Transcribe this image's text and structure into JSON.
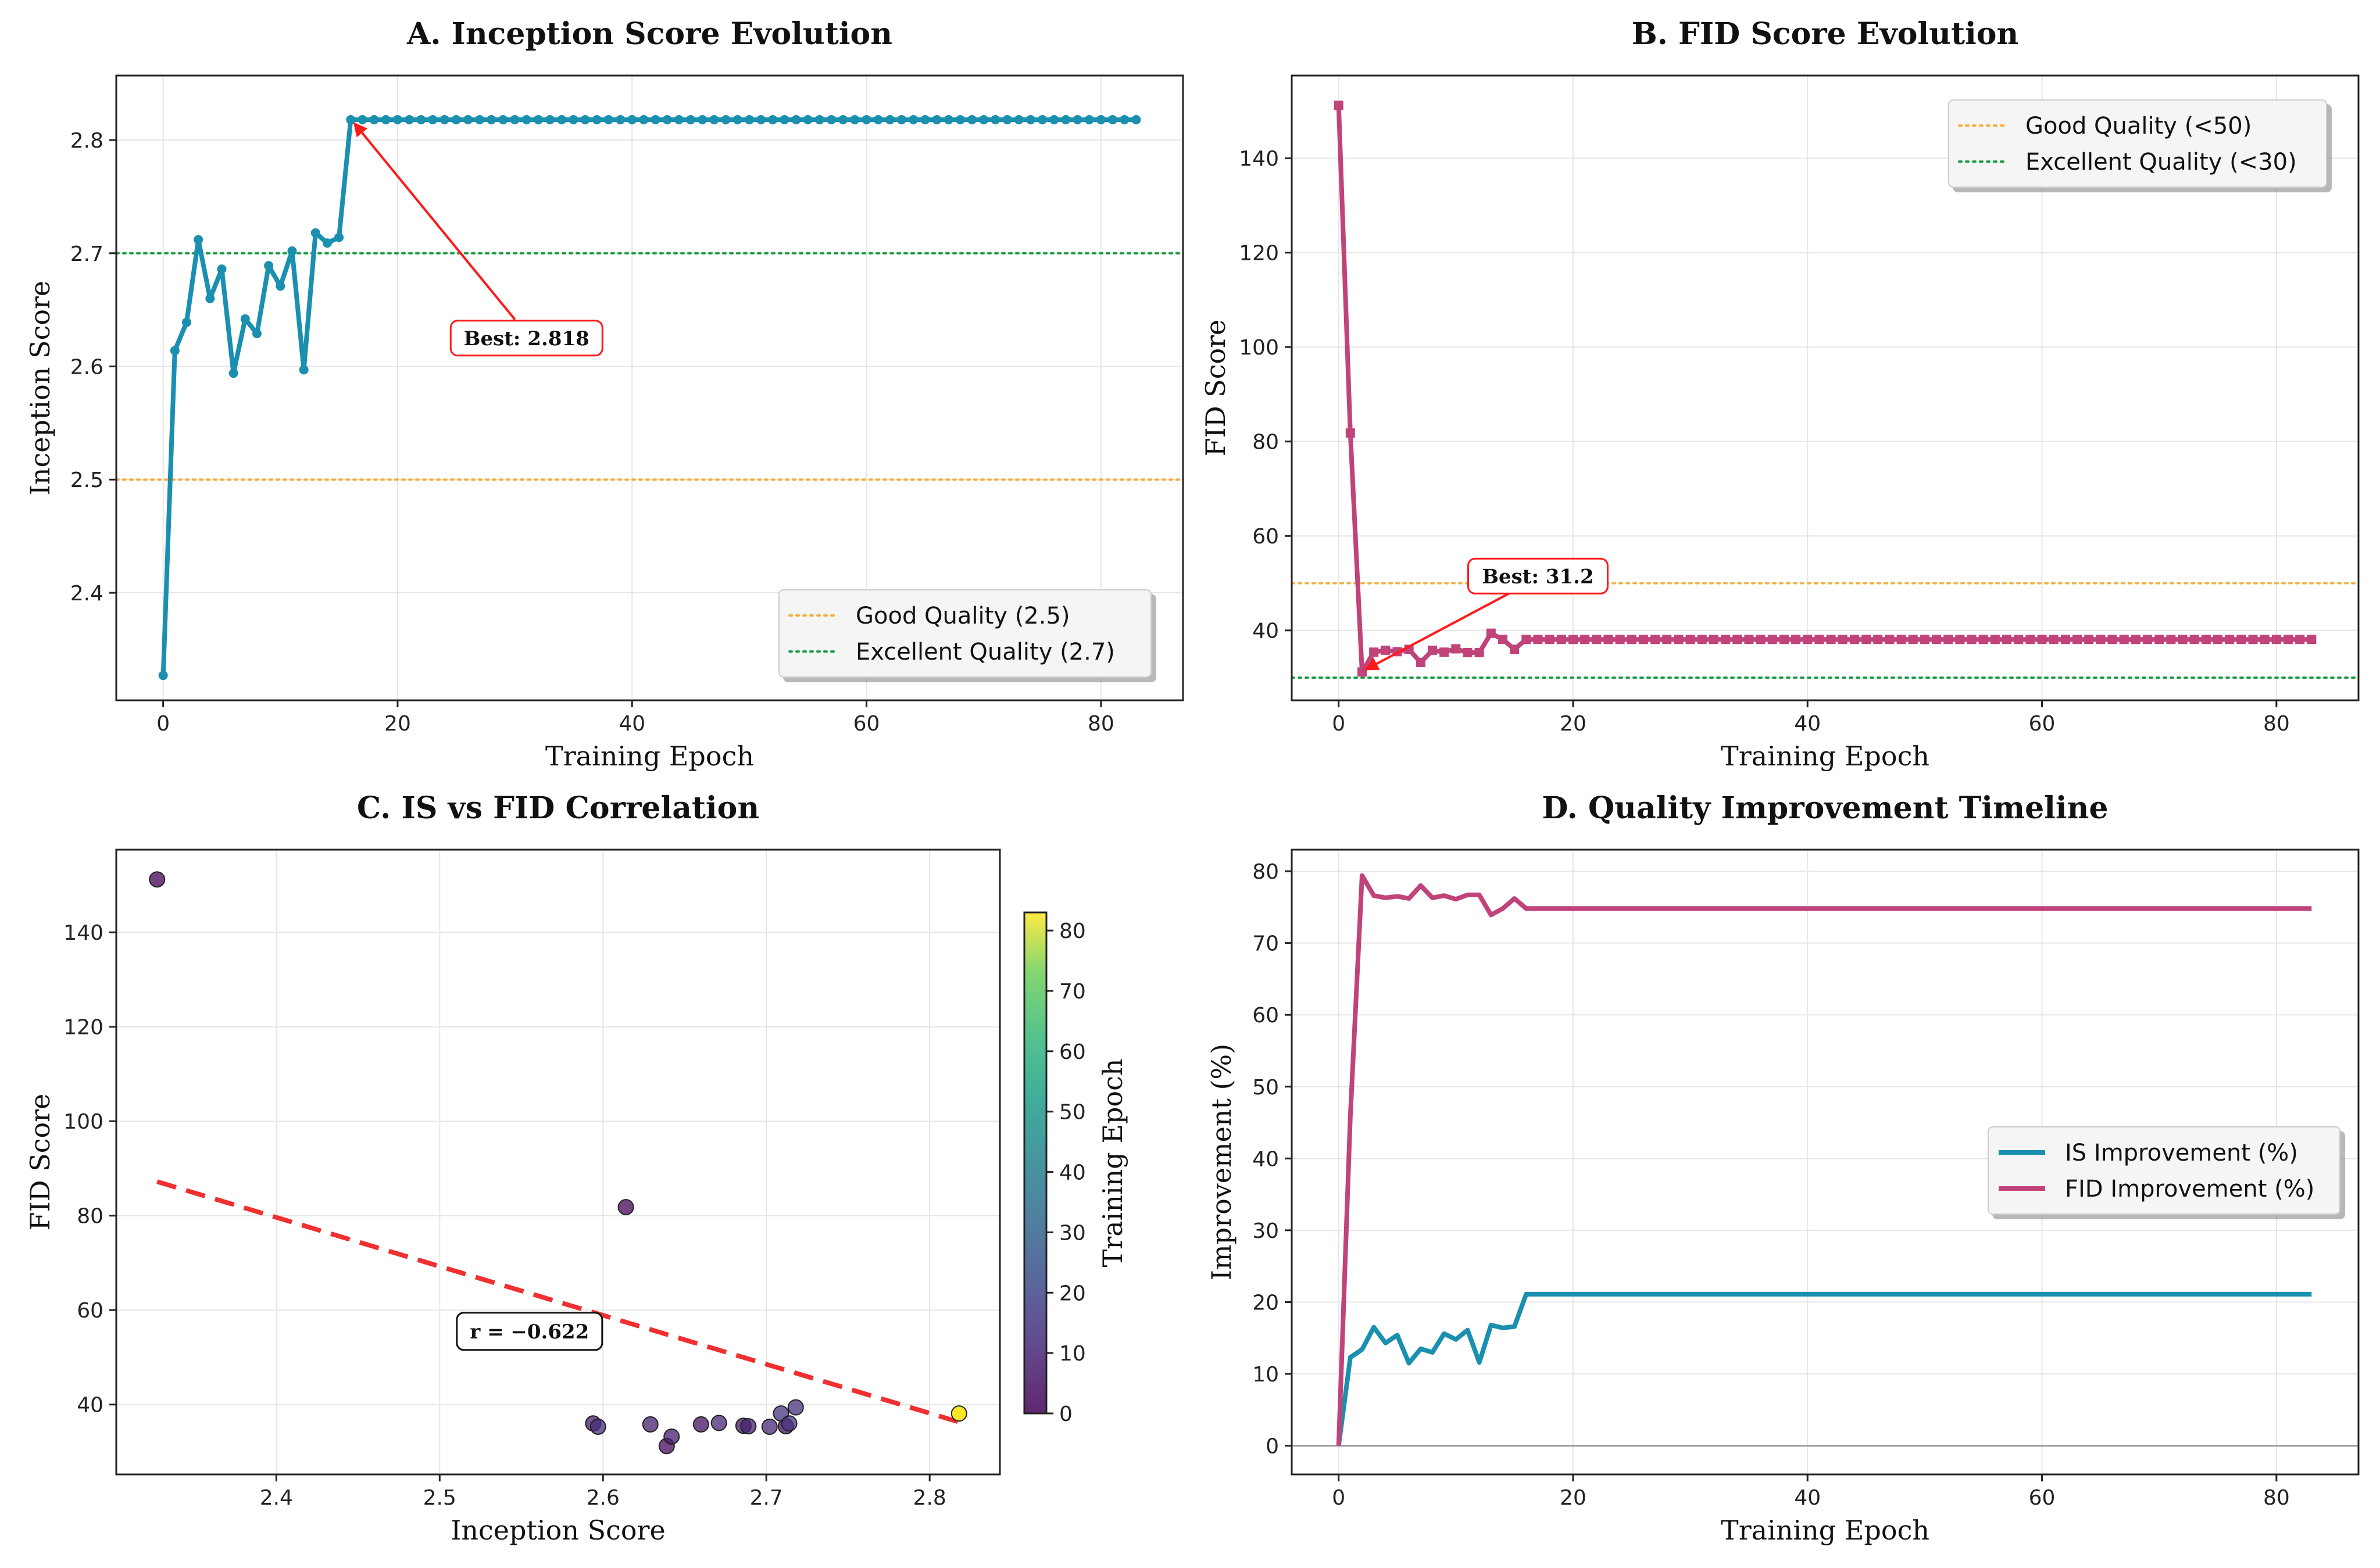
{
  "chart_data": [
    {
      "id": "A",
      "type": "line",
      "title": "A. Inception Score Evolution",
      "xlabel": "Training Epoch",
      "ylabel": "Inception Score",
      "xlim": [
        -4,
        87
      ],
      "ylim": [
        2.305,
        2.857
      ],
      "xticks": [
        0,
        20,
        40,
        60,
        80
      ],
      "yticks": [
        2.4,
        2.5,
        2.6,
        2.7,
        2.8
      ],
      "ytick_labels": [
        "2.4",
        "2.5",
        "2.6",
        "2.7",
        "2.8"
      ],
      "grid": true,
      "color": "#1a8fb0",
      "series": [
        {
          "name": "Inception Score",
          "x_start": 0,
          "values": [
            2.327,
            2.614,
            2.639,
            2.712,
            2.66,
            2.686,
            2.594,
            2.642,
            2.629,
            2.689,
            2.671,
            2.702,
            2.597,
            2.718,
            2.709,
            2.714,
            2.818,
            2.818,
            2.818,
            2.818,
            2.818,
            2.818,
            2.818,
            2.818,
            2.818,
            2.818,
            2.818,
            2.818,
            2.818,
            2.818,
            2.818,
            2.818,
            2.818,
            2.818,
            2.818,
            2.818,
            2.818,
            2.818,
            2.818,
            2.818,
            2.818,
            2.818,
            2.818,
            2.818,
            2.818,
            2.818,
            2.818,
            2.818,
            2.818,
            2.818,
            2.818,
            2.818,
            2.818,
            2.818,
            2.818,
            2.818,
            2.818,
            2.818,
            2.818,
            2.818,
            2.818,
            2.818,
            2.818,
            2.818,
            2.818,
            2.818,
            2.818,
            2.818,
            2.818,
            2.818,
            2.818,
            2.818,
            2.818,
            2.818,
            2.818,
            2.818,
            2.818,
            2.818,
            2.818,
            2.818,
            2.818,
            2.818,
            2.818,
            2.818
          ]
        }
      ],
      "reference_lines": [
        {
          "label": "Good Quality (2.5)",
          "value": 2.5,
          "color": "#f5b041"
        },
        {
          "label": "Excellent Quality (2.7)",
          "value": 2.7,
          "color": "#1e9e4a"
        }
      ],
      "legend": "lower right",
      "annotation": {
        "text": "Best: 2.818",
        "point": [
          16,
          2.818
        ],
        "text_at": [
          31,
          2.625
        ]
      }
    },
    {
      "id": "B",
      "type": "line",
      "title": "B. FID Score Evolution",
      "xlabel": "Training Epoch",
      "ylabel": "FID Score",
      "xlim": [
        -4,
        87
      ],
      "ylim": [
        25.2,
        157.5
      ],
      "xticks": [
        0,
        20,
        40,
        60,
        80
      ],
      "yticks": [
        40,
        60,
        80,
        100,
        120,
        140
      ],
      "ytick_labels": [
        "40",
        "60",
        "80",
        "100",
        "120",
        "140"
      ],
      "grid": true,
      "color": "#c0437a",
      "series": [
        {
          "name": "FID Score",
          "x_start": 0,
          "values": [
            151.2,
            81.8,
            31.2,
            35.4,
            35.8,
            35.5,
            36.0,
            33.2,
            35.8,
            35.4,
            36.1,
            35.3,
            35.3,
            39.4,
            38.1,
            36.0,
            38.1,
            38.1,
            38.1,
            38.1,
            38.1,
            38.1,
            38.1,
            38.1,
            38.1,
            38.1,
            38.1,
            38.1,
            38.1,
            38.1,
            38.1,
            38.1,
            38.1,
            38.1,
            38.1,
            38.1,
            38.1,
            38.1,
            38.1,
            38.1,
            38.1,
            38.1,
            38.1,
            38.1,
            38.1,
            38.1,
            38.1,
            38.1,
            38.1,
            38.1,
            38.1,
            38.1,
            38.1,
            38.1,
            38.1,
            38.1,
            38.1,
            38.1,
            38.1,
            38.1,
            38.1,
            38.1,
            38.1,
            38.1,
            38.1,
            38.1,
            38.1,
            38.1,
            38.1,
            38.1,
            38.1,
            38.1,
            38.1,
            38.1,
            38.1,
            38.1,
            38.1,
            38.1,
            38.1,
            38.1,
            38.1,
            38.1,
            38.1,
            38.1
          ]
        }
      ],
      "reference_lines": [
        {
          "label": "Good Quality (<50)",
          "value": 50,
          "color": "#f5b041"
        },
        {
          "label": "Excellent Quality (<30)",
          "value": 30,
          "color": "#1e9e4a"
        }
      ],
      "legend": "upper right",
      "annotation": {
        "text": "Best: 31.2",
        "point": [
          2,
          31.2
        ],
        "text_at": [
          17,
          51.5
        ]
      }
    },
    {
      "id": "C",
      "type": "scatter",
      "title": "C. IS vs FID Correlation",
      "xlabel": "Inception Score",
      "ylabel": "FID Score",
      "xlim": [
        2.302,
        2.843
      ],
      "ylim": [
        25.2,
        157.5
      ],
      "xticks": [
        2.4,
        2.5,
        2.6,
        2.7,
        2.8
      ],
      "xtick_labels": [
        "2.4",
        "2.5",
        "2.6",
        "2.7",
        "2.8"
      ],
      "yticks": [
        40,
        60,
        80,
        100,
        120,
        140
      ],
      "ytick_labels": [
        "40",
        "60",
        "80",
        "100",
        "120",
        "140"
      ],
      "grid": true,
      "points": [
        {
          "is": 2.327,
          "fid": 151.2,
          "epoch": 0
        },
        {
          "is": 2.614,
          "fid": 81.8,
          "epoch": 1
        },
        {
          "is": 2.639,
          "fid": 31.2,
          "epoch": 2
        },
        {
          "is": 2.712,
          "fid": 35.4,
          "epoch": 3
        },
        {
          "is": 2.66,
          "fid": 35.8,
          "epoch": 4
        },
        {
          "is": 2.686,
          "fid": 35.5,
          "epoch": 5
        },
        {
          "is": 2.594,
          "fid": 36.0,
          "epoch": 6
        },
        {
          "is": 2.642,
          "fid": 33.2,
          "epoch": 7
        },
        {
          "is": 2.629,
          "fid": 35.8,
          "epoch": 8
        },
        {
          "is": 2.689,
          "fid": 35.4,
          "epoch": 9
        },
        {
          "is": 2.671,
          "fid": 36.1,
          "epoch": 10
        },
        {
          "is": 2.702,
          "fid": 35.3,
          "epoch": 11
        },
        {
          "is": 2.597,
          "fid": 35.3,
          "epoch": 12
        },
        {
          "is": 2.718,
          "fid": 39.4,
          "epoch": 13
        },
        {
          "is": 2.709,
          "fid": 38.1,
          "epoch": 14
        },
        {
          "is": 2.714,
          "fid": 36.0,
          "epoch": 15
        },
        {
          "is": 2.818,
          "fid": 38.1,
          "epoch": 83
        }
      ],
      "trendline": {
        "x": [
          2.327,
          2.818
        ],
        "y": [
          87.2,
          36.3
        ],
        "color": "#f03030"
      },
      "annotation": {
        "text": "r = −0.622",
        "at": [
          2.555,
          55.5
        ]
      },
      "colorbar": {
        "label": "Training Epoch",
        "range": [
          0,
          83
        ],
        "ticks": [
          0,
          10,
          20,
          30,
          40,
          50,
          60,
          70,
          80
        ],
        "colormap": "viridis"
      }
    },
    {
      "id": "D",
      "type": "line",
      "title": "D. Quality Improvement Timeline",
      "xlabel": "Training Epoch",
      "ylabel": "Improvement (%)",
      "xlim": [
        -4,
        87
      ],
      "ylim": [
        -4,
        83
      ],
      "xticks": [
        0,
        20,
        40,
        60,
        80
      ],
      "yticks": [
        0,
        10,
        20,
        30,
        40,
        50,
        60,
        70,
        80
      ],
      "ytick_labels": [
        "0",
        "10",
        "20",
        "30",
        "40",
        "50",
        "60",
        "70",
        "80"
      ],
      "grid": true,
      "zero_line": true,
      "series": [
        {
          "name": "IS Improvement (%)",
          "color": "#1a8fb0",
          "x_start": 0,
          "values": [
            0,
            12.3,
            13.4,
            16.5,
            14.3,
            15.4,
            11.5,
            13.5,
            13.0,
            15.6,
            14.8,
            16.1,
            11.6,
            16.8,
            16.4,
            16.6,
            21.1,
            21.1,
            21.1,
            21.1,
            21.1,
            21.1,
            21.1,
            21.1,
            21.1,
            21.1,
            21.1,
            21.1,
            21.1,
            21.1,
            21.1,
            21.1,
            21.1,
            21.1,
            21.1,
            21.1,
            21.1,
            21.1,
            21.1,
            21.1,
            21.1,
            21.1,
            21.1,
            21.1,
            21.1,
            21.1,
            21.1,
            21.1,
            21.1,
            21.1,
            21.1,
            21.1,
            21.1,
            21.1,
            21.1,
            21.1,
            21.1,
            21.1,
            21.1,
            21.1,
            21.1,
            21.1,
            21.1,
            21.1,
            21.1,
            21.1,
            21.1,
            21.1,
            21.1,
            21.1,
            21.1,
            21.1,
            21.1,
            21.1,
            21.1,
            21.1,
            21.1,
            21.1,
            21.1,
            21.1,
            21.1,
            21.1,
            21.1,
            21.1
          ]
        },
        {
          "name": "FID Improvement (%)",
          "color": "#c0437a",
          "x_start": 0,
          "values": [
            0,
            45.9,
            79.4,
            76.6,
            76.3,
            76.5,
            76.2,
            78.0,
            76.3,
            76.6,
            76.1,
            76.7,
            76.7,
            73.9,
            74.8,
            76.2,
            74.8,
            74.8,
            74.8,
            74.8,
            74.8,
            74.8,
            74.8,
            74.8,
            74.8,
            74.8,
            74.8,
            74.8,
            74.8,
            74.8,
            74.8,
            74.8,
            74.8,
            74.8,
            74.8,
            74.8,
            74.8,
            74.8,
            74.8,
            74.8,
            74.8,
            74.8,
            74.8,
            74.8,
            74.8,
            74.8,
            74.8,
            74.8,
            74.8,
            74.8,
            74.8,
            74.8,
            74.8,
            74.8,
            74.8,
            74.8,
            74.8,
            74.8,
            74.8,
            74.8,
            74.8,
            74.8,
            74.8,
            74.8,
            74.8,
            74.8,
            74.8,
            74.8,
            74.8,
            74.8,
            74.8,
            74.8,
            74.8,
            74.8,
            74.8,
            74.8,
            74.8,
            74.8,
            74.8,
            74.8,
            74.8,
            74.8,
            74.8,
            74.8
          ]
        }
      ],
      "legend": "center right"
    }
  ]
}
